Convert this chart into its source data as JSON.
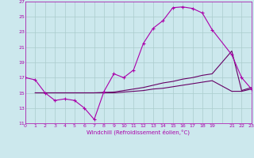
{
  "background_color": "#cce8ed",
  "grid_color": "#aacccc",
  "line_color": "#aa00aa",
  "line_color2": "#660066",
  "xlim": [
    0,
    23
  ],
  "ylim": [
    11,
    27
  ],
  "xtick_labels": [
    "0",
    "1",
    "2",
    "3",
    "4",
    "5",
    "6",
    "7",
    "8",
    "9",
    "10",
    "11",
    "12",
    "13",
    "14",
    "15",
    "16",
    "17",
    "18",
    "19",
    " ",
    "21",
    "22",
    "23"
  ],
  "xtick_vals": [
    0,
    1,
    2,
    3,
    4,
    5,
    6,
    7,
    8,
    9,
    10,
    11,
    12,
    13,
    14,
    15,
    16,
    17,
    18,
    19,
    20,
    21,
    22,
    23
  ],
  "yticks": [
    11,
    13,
    15,
    17,
    19,
    21,
    23,
    25,
    27
  ],
  "xlabel": "Windchill (Refroidissement éolien,°C)",
  "series_main_x": [
    0,
    1,
    2,
    3,
    4,
    5,
    6,
    7,
    8,
    9,
    10,
    11,
    12,
    13,
    14,
    15,
    16,
    17,
    18,
    19,
    21,
    22,
    23
  ],
  "series_main_y": [
    17.0,
    16.7,
    15.0,
    14.0,
    14.2,
    14.0,
    13.0,
    11.5,
    15.2,
    17.5,
    17.0,
    18.0,
    21.5,
    23.5,
    24.5,
    26.2,
    26.3,
    26.1,
    25.5,
    23.3,
    20.0,
    17.0,
    15.5
  ],
  "series_line1_x": [
    1,
    2,
    3,
    4,
    5,
    6,
    7,
    9,
    10,
    11,
    12,
    13,
    14,
    15,
    16,
    17,
    18,
    19,
    21,
    22,
    23
  ],
  "series_line1_y": [
    15.0,
    15.0,
    15.0,
    15.0,
    15.0,
    15.0,
    15.0,
    15.1,
    15.3,
    15.5,
    15.7,
    16.0,
    16.3,
    16.5,
    16.8,
    17.0,
    17.3,
    17.5,
    20.5,
    15.3,
    15.7
  ],
  "series_line2_x": [
    1,
    2,
    3,
    4,
    5,
    6,
    7,
    8,
    9,
    10,
    11,
    12,
    13,
    14,
    15,
    16,
    17,
    18,
    19,
    21,
    22,
    23
  ],
  "series_line2_y": [
    15.0,
    15.0,
    15.0,
    15.0,
    15.0,
    15.0,
    15.0,
    15.0,
    15.0,
    15.1,
    15.2,
    15.3,
    15.5,
    15.6,
    15.8,
    16.0,
    16.2,
    16.4,
    16.6,
    15.2,
    15.2,
    15.5
  ]
}
